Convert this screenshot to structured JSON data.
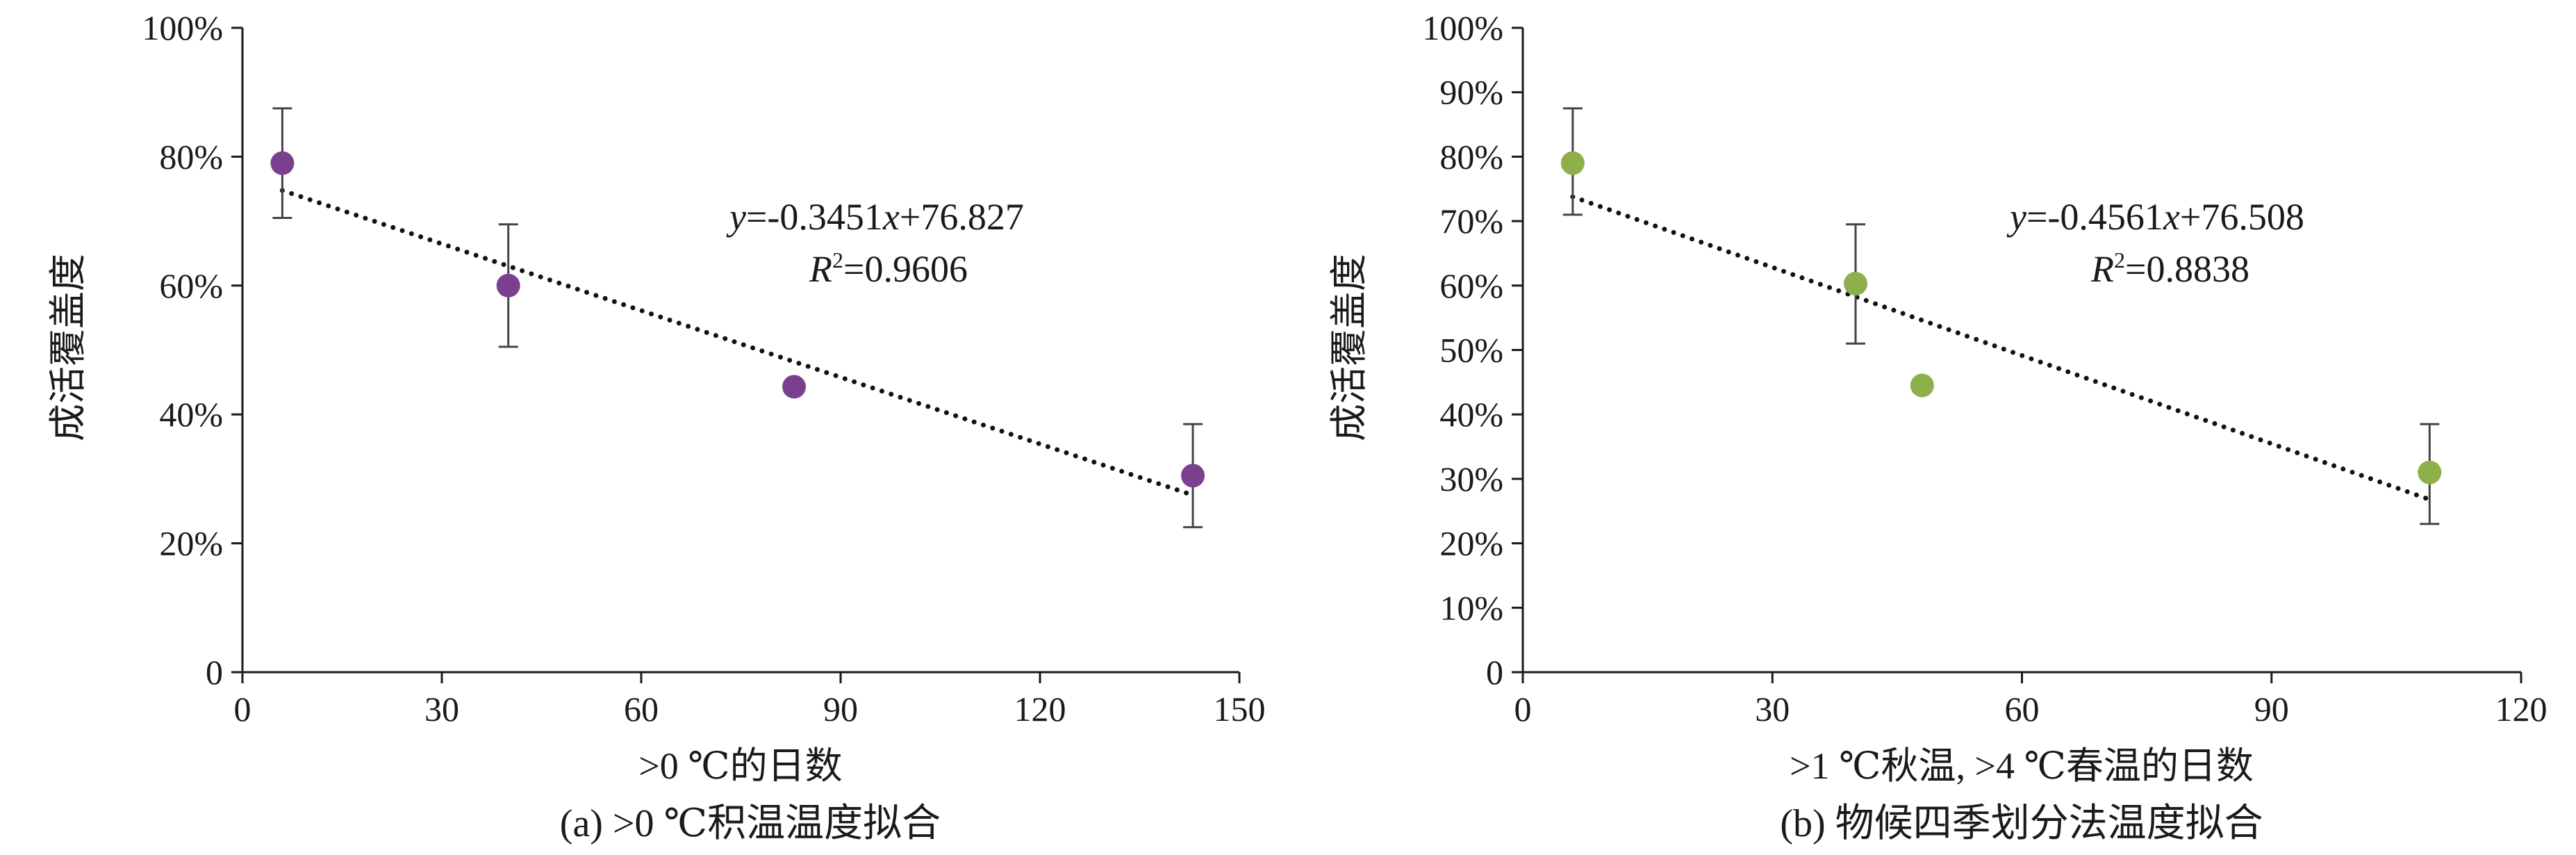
{
  "chart_data": [
    {
      "type": "scatter",
      "panel_caption": "(a) >0 ℃积温温度拟合",
      "xlabel": ">0 ℃的日数",
      "ylabel": "成活覆盖度",
      "xlim": [
        0,
        150
      ],
      "ylim": [
        0,
        100
      ],
      "x_ticks": [
        "0",
        "30",
        "60",
        "90",
        "120",
        "150"
      ],
      "x_tick_values": [
        0,
        30,
        60,
        90,
        120,
        150
      ],
      "y_ticks": [
        "0",
        "20%",
        "40%",
        "60%",
        "80%",
        "100%"
      ],
      "y_tick_values": [
        0,
        20,
        40,
        60,
        80,
        100
      ],
      "grid": false,
      "marker_color": "#7b3f8f",
      "points": [
        {
          "x": 6,
          "y": 79,
          "err_low": 70.5,
          "err_high": 87.5
        },
        {
          "x": 40,
          "y": 60,
          "err_low": 50.5,
          "err_high": 69.5
        },
        {
          "x": 83,
          "y": 44.3,
          "err_low": null,
          "err_high": null
        },
        {
          "x": 143,
          "y": 30.5,
          "err_low": 22.5,
          "err_high": 38.5
        }
      ],
      "trendline": {
        "slope": -0.3451,
        "intercept": 76.827,
        "x_from": 6,
        "x_to": 143,
        "style": "dotted"
      },
      "equation": {
        "prefix": "y",
        "text": "=-0.3451",
        "var": "x",
        "rest": "+76.827"
      },
      "r2": {
        "label": "R",
        "sup": "2",
        "value": "=0.9606"
      }
    },
    {
      "type": "scatter",
      "panel_caption": "(b) 物候四季划分法温度拟合",
      "xlabel": ">1 ℃秋温, >4 ℃春温的日数",
      "ylabel": "成活覆盖度",
      "xlim": [
        0,
        120
      ],
      "ylim": [
        0,
        100
      ],
      "x_ticks": [
        "0",
        "30",
        "60",
        "90",
        "120"
      ],
      "x_tick_values": [
        0,
        30,
        60,
        90,
        120
      ],
      "y_ticks": [
        "0",
        "10%",
        "20%",
        "30%",
        "40%",
        "50%",
        "60%",
        "70%",
        "80%",
        "90%",
        "100%"
      ],
      "y_tick_values": [
        0,
        10,
        20,
        30,
        40,
        50,
        60,
        70,
        80,
        90,
        100
      ],
      "grid": false,
      "marker_color": "#8db04a",
      "points": [
        {
          "x": 6,
          "y": 79,
          "err_low": 71,
          "err_high": 87.5
        },
        {
          "x": 40,
          "y": 60.3,
          "err_low": 51,
          "err_high": 69.5
        },
        {
          "x": 48,
          "y": 44.5,
          "err_low": null,
          "err_high": null
        },
        {
          "x": 109,
          "y": 31,
          "err_low": 23,
          "err_high": 38.5
        }
      ],
      "trendline": {
        "slope": -0.4561,
        "intercept": 76.508,
        "x_from": 6,
        "x_to": 109,
        "style": "dotted"
      },
      "equation": {
        "prefix": "y",
        "text": "=-0.4561",
        "var": "x",
        "rest": "+76.508"
      },
      "r2": {
        "label": "R",
        "sup": "2",
        "value": "=0.8838"
      }
    }
  ]
}
